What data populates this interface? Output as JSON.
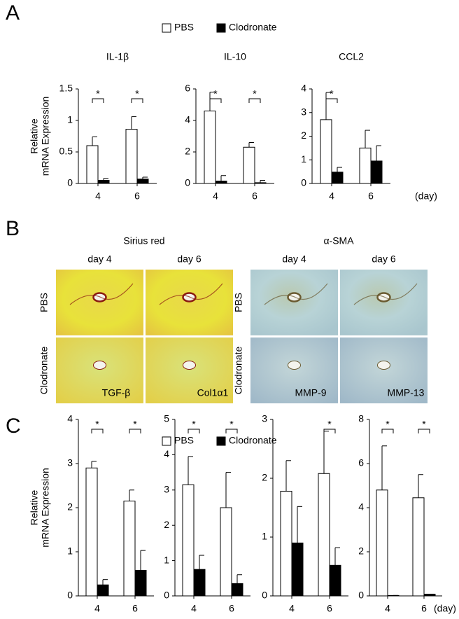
{
  "panel_labels": [
    "A",
    "B",
    "C"
  ],
  "chart_data": [
    {
      "type": "bar",
      "title": "IL-1β",
      "ylabel": [
        "Relative",
        "mRNA Expression"
      ],
      "categories": [
        "4",
        "6"
      ],
      "ylim": [
        0,
        1.5
      ],
      "yticks": [
        0,
        0.5,
        1,
        1.5
      ],
      "series": [
        {
          "name": "PBS",
          "color": "#ffffff",
          "values": [
            0.6,
            0.86
          ],
          "errors": [
            0.14,
            0.2
          ]
        },
        {
          "name": "Clodronate",
          "color": "#000000",
          "values": [
            0.05,
            0.07
          ],
          "errors": [
            0.03,
            0.03
          ]
        }
      ],
      "significance": [
        "*",
        "*"
      ]
    },
    {
      "type": "bar",
      "title": "IL-10",
      "categories": [
        "4",
        "6"
      ],
      "ylim": [
        0,
        6
      ],
      "yticks": [
        0,
        2,
        4,
        6
      ],
      "series": [
        {
          "color": "#ffffff",
          "values": [
            4.6,
            2.3
          ],
          "errors": [
            1.2,
            0.3
          ]
        },
        {
          "color": "#000000",
          "values": [
            0.15,
            0.05
          ],
          "errors": [
            0.35,
            0.15
          ]
        }
      ],
      "significance": [
        "*",
        "*"
      ]
    },
    {
      "type": "bar",
      "title": "CCL2",
      "x_label": "(day)",
      "categories": [
        "4",
        "6"
      ],
      "ylim": [
        0,
        4
      ],
      "yticks": [
        0,
        1,
        2,
        3,
        4
      ],
      "series": [
        {
          "color": "#ffffff",
          "values": [
            2.7,
            1.5
          ],
          "errors": [
            1.15,
            0.75
          ]
        },
        {
          "color": "#000000",
          "values": [
            0.48,
            0.95
          ],
          "errors": [
            0.2,
            0.65
          ]
        }
      ],
      "significance": [
        "*",
        null
      ]
    },
    {
      "type": "bar",
      "title": "TGF-β",
      "ylabel": [
        "Relative",
        "mRNA Expression"
      ],
      "categories": [
        "4",
        "6"
      ],
      "ylim": [
        0,
        4
      ],
      "yticks": [
        0,
        1,
        2,
        3,
        4
      ],
      "series": [
        {
          "name": "PBS",
          "color": "#ffffff",
          "values": [
            2.9,
            2.15
          ],
          "errors": [
            0.15,
            0.25
          ]
        },
        {
          "name": "Clodronate",
          "color": "#000000",
          "values": [
            0.25,
            0.58
          ],
          "errors": [
            0.12,
            0.45
          ]
        }
      ],
      "significance": [
        "*",
        "*"
      ]
    },
    {
      "type": "bar",
      "title": "Col1α1",
      "categories": [
        "4",
        "6"
      ],
      "ylim": [
        0,
        5
      ],
      "yticks": [
        0,
        1,
        2,
        3,
        4,
        5
      ],
      "series": [
        {
          "color": "#ffffff",
          "values": [
            3.15,
            2.5
          ],
          "errors": [
            0.8,
            1.0
          ]
        },
        {
          "color": "#000000",
          "values": [
            0.75,
            0.35
          ],
          "errors": [
            0.4,
            0.25
          ]
        }
      ],
      "significance": [
        "*",
        "*"
      ]
    },
    {
      "type": "bar",
      "title": "MMP-9",
      "categories": [
        "4",
        "6"
      ],
      "ylim": [
        0,
        3
      ],
      "yticks": [
        0,
        1,
        2,
        3
      ],
      "series": [
        {
          "color": "#ffffff",
          "values": [
            1.78,
            2.08
          ],
          "errors": [
            0.52,
            0.72
          ]
        },
        {
          "color": "#000000",
          "values": [
            0.9,
            0.52
          ],
          "errors": [
            0.62,
            0.3
          ]
        }
      ],
      "significance": [
        null,
        "*"
      ]
    },
    {
      "type": "bar",
      "title": "MMP-13",
      "x_label": "(day)",
      "categories": [
        "4",
        "6"
      ],
      "ylim": [
        0,
        8
      ],
      "yticks": [
        0,
        2,
        4,
        6,
        8
      ],
      "series": [
        {
          "color": "#ffffff",
          "values": [
            4.8,
            4.45
          ],
          "errors": [
            2.0,
            1.05
          ]
        },
        {
          "color": "#000000",
          "values": [
            0.02,
            0.08
          ],
          "errors": [
            0,
            0
          ]
        }
      ],
      "significance": [
        "*",
        "*"
      ]
    }
  ],
  "micrographs": [
    {
      "title": "Sirius red",
      "columns": [
        "day 4",
        "day 6"
      ],
      "rows": [
        "PBS",
        "Clodronate"
      ]
    },
    {
      "title": "α-SMA",
      "columns": [
        "day 4",
        "day 6"
      ],
      "rows": [
        "PBS",
        "Clodronate"
      ]
    }
  ]
}
